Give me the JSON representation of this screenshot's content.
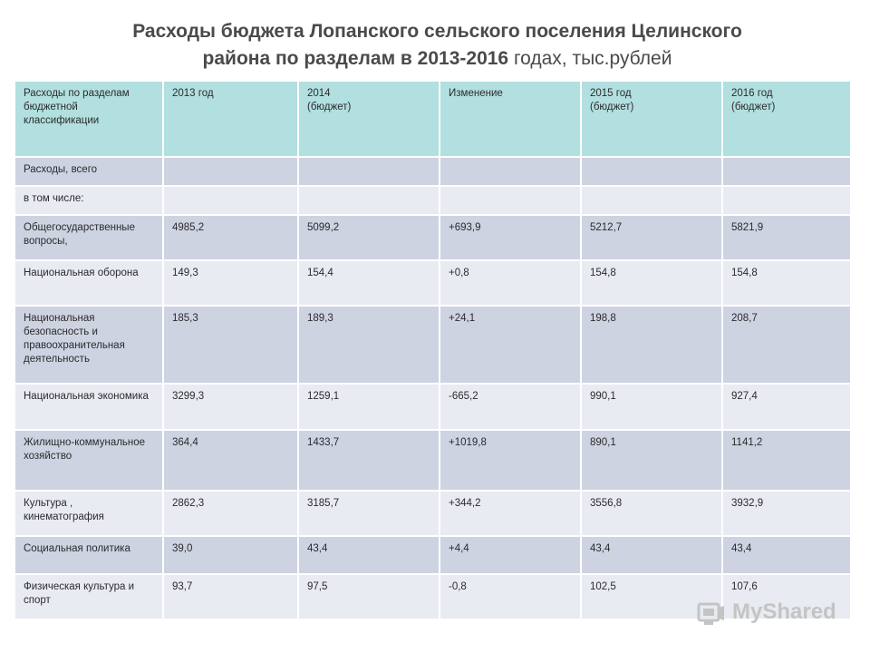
{
  "title": {
    "line1": "Расходы бюджета Лопанского сельского поселения Целинского",
    "line2_bold": "района по разделам в 2013-2016",
    "line2_normal": " годах, тыс.рублей"
  },
  "table": {
    "headers": [
      "Расходы по разделам бюджетной классификации",
      "2013 год",
      "2014\n(бюджет)",
      "Изменение",
      "2015 год\n(бюджет)",
      "2016 год\n(бюджет)"
    ],
    "rows": [
      [
        "Расходы, всего",
        "",
        "",
        "",
        "",
        ""
      ],
      [
        "в том числе:",
        "",
        "",
        "",
        "",
        ""
      ],
      [
        "Общегосударственные вопросы,",
        "4985,2",
        "5099,2",
        "+693,9",
        "5212,7",
        "5821,9"
      ],
      [
        "Национальная оборона",
        "149,3",
        "154,4",
        "+0,8",
        "154,8",
        "154,8"
      ],
      [
        "Национальная безопасность и правоохранительная деятельность",
        "185,3",
        "189,3",
        "+24,1",
        "198,8",
        "208,7"
      ],
      [
        "Национальная экономика",
        "3299,3",
        "1259,1",
        "-665,2",
        "990,1",
        "927,4"
      ],
      [
        "Жилищно-коммунальное хозяйство",
        "364,4",
        "1433,7",
        "+1019,8",
        "890,1",
        "1141,2"
      ],
      [
        "Культура , кинематография",
        "2862,3",
        "3185,7",
        "+344,2",
        "3556,8",
        "3932,9"
      ],
      [
        "Социальная политика",
        "39,0",
        "43,4",
        "+4,4",
        "43,4",
        "43,4"
      ],
      [
        "Физическая культура и спорт",
        "93,7",
        "97,5",
        "-0,8",
        "102,5",
        "107,6"
      ]
    ]
  },
  "watermark": {
    "brand": "MyShared",
    "icon": "myshared-logo-icon"
  }
}
